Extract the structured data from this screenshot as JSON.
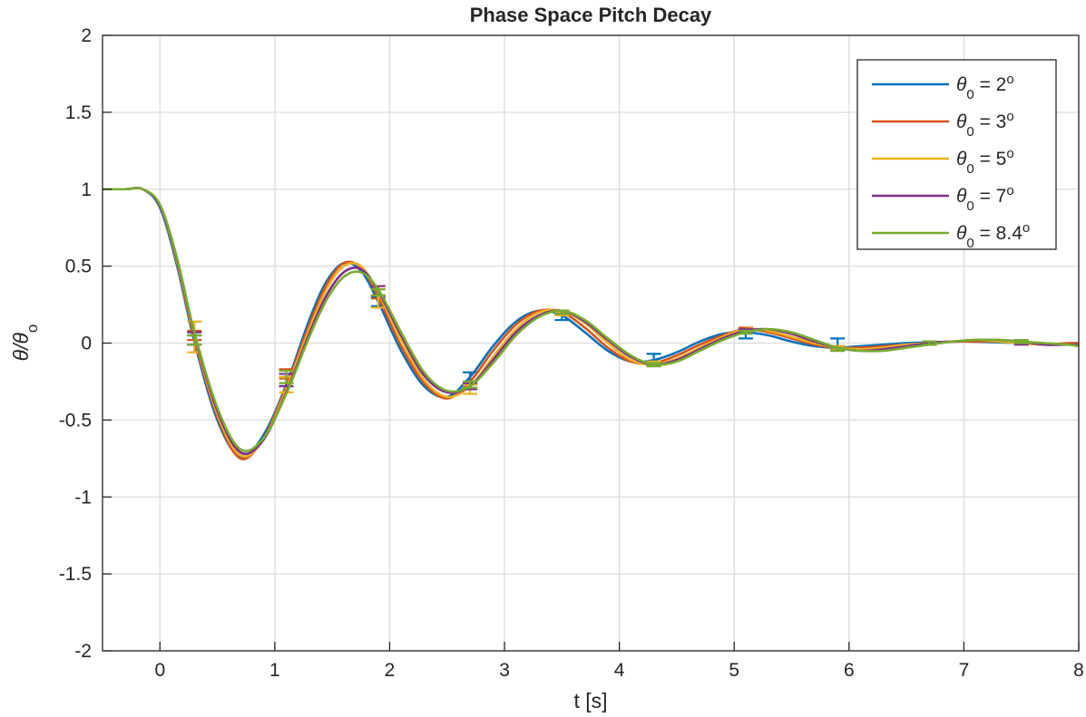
{
  "chart_data": {
    "type": "line",
    "title": "Phase Space Pitch Decay",
    "xlabel": "t [s]",
    "ylabel": {
      "main": "θ/θ",
      "sub": "o"
    },
    "xlim": [
      -0.5,
      8
    ],
    "ylim": [
      -2,
      2
    ],
    "xticks": [
      0,
      1,
      2,
      3,
      4,
      5,
      6,
      7,
      8
    ],
    "yticks": [
      -2,
      -1.5,
      -1,
      -0.5,
      0,
      0.5,
      1,
      1.5,
      2
    ],
    "xtick_labels": [
      "0",
      "1",
      "2",
      "3",
      "4",
      "5",
      "6",
      "7",
      "8"
    ],
    "ytick_labels": [
      "-2",
      "-1.5",
      "-1",
      "-0.5",
      "0",
      "0.5",
      "1",
      "1.5",
      "2"
    ],
    "grid": true,
    "legend_position": "top-right",
    "series": [
      {
        "name": {
          "symbol": "θ",
          "sub": "0",
          "rest": " = 2",
          "sup": "o"
        },
        "color": "#0072BD",
        "x": [
          -0.5,
          -0.3,
          -0.15,
          0.0,
          0.15,
          0.3,
          0.5,
          0.7,
          0.9,
          1.1,
          1.3,
          1.45,
          1.6,
          1.75,
          1.9,
          2.1,
          2.3,
          2.5,
          2.7,
          2.9,
          3.1,
          3.3,
          3.5,
          3.7,
          3.9,
          4.1,
          4.3,
          4.5,
          4.7,
          4.9,
          5.1,
          5.3,
          5.5,
          5.7,
          5.9,
          6.1,
          6.3,
          6.5,
          6.7,
          6.9,
          7.1,
          7.3,
          7.5,
          7.7,
          7.9,
          8.0
        ],
        "y": [
          1.0,
          1.0,
          1.0,
          0.88,
          0.5,
          0.01,
          -0.5,
          -0.74,
          -0.6,
          -0.27,
          0.15,
          0.4,
          0.52,
          0.47,
          0.27,
          -0.05,
          -0.28,
          -0.35,
          -0.22,
          -0.02,
          0.14,
          0.21,
          0.18,
          0.07,
          -0.05,
          -0.12,
          -0.11,
          -0.06,
          0.01,
          0.06,
          0.07,
          0.05,
          0.01,
          -0.02,
          -0.03,
          -0.02,
          -0.01,
          0.0,
          0.005,
          0.01,
          0.01,
          0.005,
          0.0,
          -0.01,
          -0.01,
          -0.01
        ],
        "error_bars": {
          "x": [
            0.3,
            1.1,
            1.9,
            2.7,
            3.5,
            4.3,
            5.1,
            5.9
          ],
          "y": [
            0.02,
            -0.25,
            0.27,
            -0.22,
            0.18,
            -0.1,
            0.06,
            0.0
          ],
          "err": [
            0.03,
            0.03,
            0.03,
            0.03,
            0.03,
            0.03,
            0.03,
            0.03
          ]
        }
      },
      {
        "name": {
          "symbol": "θ",
          "sub": "0",
          "rest": " = 3",
          "sup": "o"
        },
        "color": "#D95319",
        "x": [
          -0.5,
          -0.3,
          -0.15,
          0.0,
          0.15,
          0.3,
          0.5,
          0.7,
          0.9,
          1.1,
          1.3,
          1.45,
          1.6,
          1.75,
          1.9,
          2.1,
          2.3,
          2.5,
          2.7,
          2.9,
          3.1,
          3.3,
          3.5,
          3.7,
          3.9,
          4.1,
          4.3,
          4.5,
          4.7,
          4.9,
          5.1,
          5.3,
          5.5,
          5.7,
          5.9,
          6.1,
          6.3,
          6.5,
          6.7,
          6.9,
          7.1,
          7.3,
          7.5,
          7.7,
          7.9,
          8.0
        ],
        "y": [
          1.0,
          1.0,
          1.0,
          0.89,
          0.52,
          0.03,
          -0.48,
          -0.75,
          -0.62,
          -0.28,
          0.12,
          0.38,
          0.52,
          0.49,
          0.3,
          -0.02,
          -0.26,
          -0.36,
          -0.25,
          -0.05,
          0.12,
          0.21,
          0.2,
          0.1,
          -0.03,
          -0.12,
          -0.13,
          -0.08,
          -0.01,
          0.05,
          0.09,
          0.07,
          0.03,
          -0.01,
          -0.03,
          -0.03,
          -0.02,
          -0.01,
          0.0,
          0.01,
          0.01,
          0.01,
          0.0,
          -0.01,
          0.0,
          0.0
        ],
        "error_bars": {
          "x": [
            0.3,
            1.1,
            1.9,
            2.7,
            3.5,
            4.3,
            5.1,
            5.9,
            6.7,
            7.5
          ],
          "y": [
            0.05,
            -0.2,
            0.32,
            -0.28,
            0.2,
            -0.13,
            0.09,
            -0.03,
            0.0,
            0.0
          ],
          "err": [
            0.03,
            0.03,
            0.03,
            0.02,
            0.01,
            0.01,
            0.01,
            0.01,
            0.01,
            0.01
          ]
        }
      },
      {
        "name": {
          "symbol": "θ",
          "sub": "0",
          "rest": " = 5",
          "sup": "o"
        },
        "color": "#EDB120",
        "x": [
          -0.5,
          -0.3,
          -0.15,
          0.0,
          0.15,
          0.3,
          0.5,
          0.7,
          0.9,
          1.1,
          1.3,
          1.45,
          1.6,
          1.75,
          1.9,
          2.1,
          2.3,
          2.5,
          2.7,
          2.9,
          3.1,
          3.3,
          3.5,
          3.7,
          3.9,
          4.1,
          4.3,
          4.5,
          4.7,
          4.9,
          5.1,
          5.3,
          5.5,
          5.7,
          5.9,
          6.1,
          6.3,
          6.5,
          6.7,
          6.9,
          7.1,
          7.3,
          7.5,
          7.7,
          7.9,
          8.0
        ],
        "y": [
          1.0,
          1.0,
          1.0,
          0.89,
          0.53,
          0.05,
          -0.46,
          -0.73,
          -0.63,
          -0.3,
          0.09,
          0.35,
          0.5,
          0.5,
          0.33,
          0.02,
          -0.24,
          -0.35,
          -0.28,
          -0.09,
          0.09,
          0.2,
          0.21,
          0.13,
          0.0,
          -0.11,
          -0.14,
          -0.1,
          -0.03,
          0.04,
          0.09,
          0.08,
          0.04,
          0.0,
          -0.03,
          -0.04,
          -0.03,
          -0.01,
          0.0,
          0.01,
          0.02,
          0.01,
          0.0,
          -0.01,
          -0.01,
          -0.01
        ],
        "error_bars": {
          "x": [
            0.3,
            1.1,
            1.9,
            2.7,
            3.5,
            4.3,
            5.1,
            5.9,
            6.7,
            7.5
          ],
          "y": [
            0.04,
            -0.27,
            0.3,
            -0.3,
            0.19,
            -0.13,
            0.08,
            -0.03,
            0.0,
            0.0
          ],
          "err": [
            0.1,
            0.05,
            0.07,
            0.03,
            0.01,
            0.01,
            0.01,
            0.01,
            0.01,
            0.01
          ]
        }
      },
      {
        "name": {
          "symbol": "θ",
          "sub": "0",
          "rest": " = 7",
          "sup": "o"
        },
        "color": "#7E2F8E",
        "x": [
          -0.5,
          -0.3,
          -0.15,
          0.0,
          0.15,
          0.3,
          0.5,
          0.7,
          0.9,
          1.1,
          1.3,
          1.45,
          1.6,
          1.75,
          1.9,
          2.1,
          2.3,
          2.5,
          2.7,
          2.9,
          3.1,
          3.3,
          3.5,
          3.7,
          3.9,
          4.1,
          4.3,
          4.5,
          4.7,
          4.9,
          5.1,
          5.3,
          5.5,
          5.7,
          5.9,
          6.1,
          6.3,
          6.5,
          6.7,
          6.9,
          7.1,
          7.3,
          7.5,
          7.7,
          7.9,
          8.0
        ],
        "y": [
          1.0,
          1.0,
          1.0,
          0.89,
          0.54,
          0.06,
          -0.44,
          -0.71,
          -0.63,
          -0.32,
          0.06,
          0.31,
          0.46,
          0.48,
          0.34,
          0.05,
          -0.21,
          -0.32,
          -0.28,
          -0.11,
          0.07,
          0.18,
          0.21,
          0.14,
          0.02,
          -0.09,
          -0.14,
          -0.11,
          -0.04,
          0.03,
          0.08,
          0.09,
          0.06,
          0.01,
          -0.03,
          -0.05,
          -0.04,
          -0.02,
          0.0,
          0.01,
          0.02,
          0.02,
          0.01,
          -0.01,
          -0.01,
          -0.01
        ],
        "error_bars": {
          "x": [
            0.3,
            1.1,
            1.9,
            2.7,
            3.5,
            4.3,
            5.1,
            5.9,
            6.7,
            7.5
          ],
          "y": [
            0.03,
            -0.24,
            0.34,
            -0.28,
            0.2,
            -0.14,
            0.08,
            -0.04,
            0.0,
            0.0
          ],
          "err": [
            0.04,
            0.04,
            0.03,
            0.02,
            0.01,
            0.01,
            0.01,
            0.01,
            0.01,
            0.01
          ]
        }
      },
      {
        "name": {
          "symbol": "θ",
          "sub": "0",
          "rest": " = 8.4",
          "sup": "o"
        },
        "color": "#77AC30",
        "x": [
          -0.5,
          -0.3,
          -0.15,
          0.0,
          0.15,
          0.3,
          0.5,
          0.7,
          0.9,
          1.1,
          1.3,
          1.45,
          1.6,
          1.75,
          1.9,
          2.1,
          2.3,
          2.5,
          2.7,
          2.9,
          3.1,
          3.3,
          3.5,
          3.7,
          3.9,
          4.1,
          4.3,
          4.5,
          4.7,
          4.9,
          5.1,
          5.3,
          5.5,
          5.7,
          5.9,
          6.1,
          6.3,
          6.5,
          6.7,
          6.9,
          7.1,
          7.3,
          7.5,
          7.7,
          7.9,
          8.0
        ],
        "y": [
          1.0,
          1.0,
          1.0,
          0.9,
          0.55,
          0.07,
          -0.42,
          -0.69,
          -0.62,
          -0.33,
          0.04,
          0.28,
          0.43,
          0.46,
          0.35,
          0.07,
          -0.19,
          -0.31,
          -0.28,
          -0.13,
          0.05,
          0.17,
          0.21,
          0.15,
          0.03,
          -0.08,
          -0.14,
          -0.12,
          -0.05,
          0.02,
          0.07,
          0.09,
          0.07,
          0.02,
          -0.03,
          -0.05,
          -0.05,
          -0.03,
          -0.01,
          0.01,
          0.02,
          0.02,
          0.01,
          0.0,
          -0.01,
          -0.02
        ],
        "error_bars": {
          "x": [
            0.3,
            1.1,
            1.9,
            2.7,
            3.5,
            4.3,
            5.1,
            5.9,
            6.7,
            7.5
          ],
          "y": [
            0.02,
            -0.22,
            0.33,
            -0.27,
            0.2,
            -0.14,
            0.07,
            -0.04,
            0.0,
            0.01
          ],
          "err": [
            0.03,
            0.04,
            0.02,
            0.02,
            0.01,
            0.01,
            0.01,
            0.01,
            0.01,
            0.01
          ]
        }
      }
    ]
  }
}
